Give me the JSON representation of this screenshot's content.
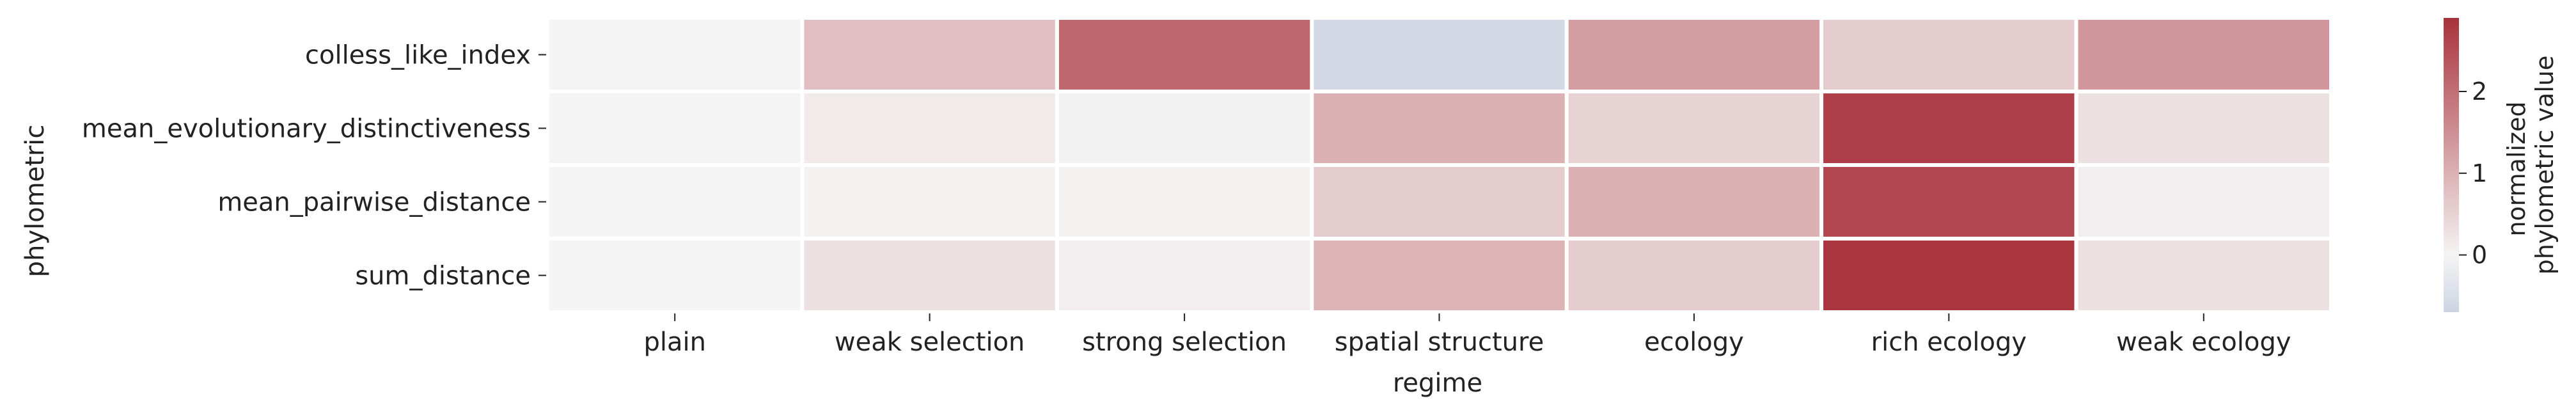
{
  "chart_data": {
    "type": "heatmap",
    "title": "",
    "xlabel": "regime",
    "ylabel": "phylometric",
    "x_categories": [
      "plain",
      "weak selection",
      "strong selection",
      "spatial structure",
      "ecology",
      "rich ecology",
      "weak ecology"
    ],
    "y_categories": [
      "colless_like_index",
      "mean_evolutionary_distinctiveness",
      "mean_pairwise_distance",
      "sum_distance"
    ],
    "values": [
      [
        0.0,
        0.8,
        2.1,
        -0.6,
        1.3,
        0.6,
        1.4
      ],
      [
        0.0,
        0.15,
        -0.05,
        1.0,
        0.5,
        2.7,
        0.3
      ],
      [
        0.0,
        0.05,
        0.05,
        0.6,
        1.0,
        2.6,
        0.1
      ],
      [
        0.0,
        0.3,
        0.1,
        0.95,
        0.6,
        2.85,
        0.3
      ]
    ],
    "colorbar": {
      "label_line1": "normalized",
      "label_line2": "phylometric value",
      "range": [
        -0.7,
        2.9
      ],
      "ticks": [
        "0",
        "1",
        "2"
      ],
      "tick_values": [
        0,
        1,
        2
      ]
    },
    "colormap": {
      "low": "#cdd4e1",
      "mid": "#f5f4f4",
      "high": "#a9323b"
    },
    "grid": false,
    "cell_border_color": "#ffffff"
  }
}
